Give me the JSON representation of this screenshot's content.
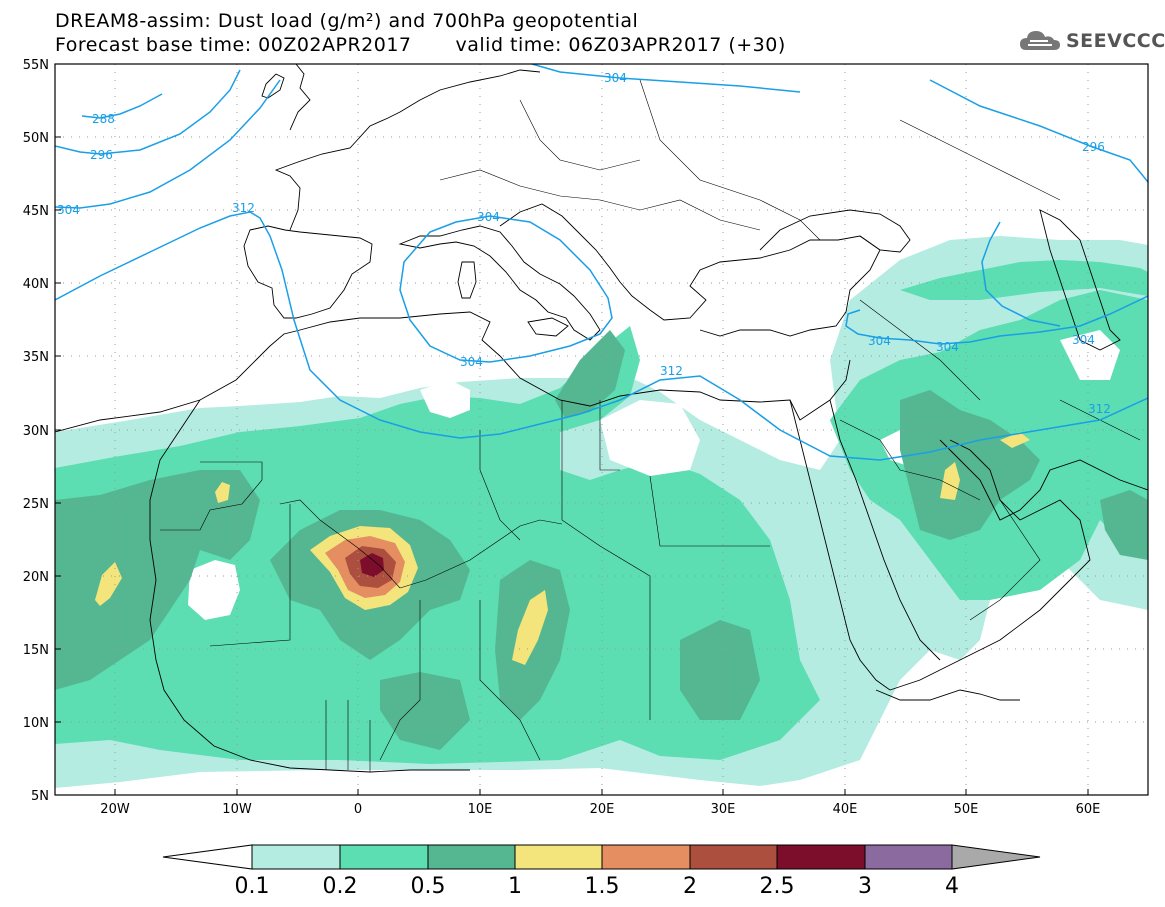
{
  "header": {
    "title_line1": "DREAM8-assim: Dust load (g/m²) and 700hPa geopotential",
    "base_time_label": "Forecast base time: 00Z02APR2017",
    "valid_time_label": "valid time: 06Z03APR2017 (+30)"
  },
  "logo": {
    "text": "SEEVCCC",
    "icon": "cloud-icon"
  },
  "map": {
    "lon_range": [
      -25,
      65
    ],
    "lat_range": [
      5,
      55
    ],
    "x_ticks": [
      "20W",
      "10W",
      "0",
      "10E",
      "20E",
      "30E",
      "40E",
      "50E",
      "60E"
    ],
    "y_ticks": [
      "55N",
      "50N",
      "45N",
      "40N",
      "35N",
      "30N",
      "25N",
      "20N",
      "15N",
      "10N",
      "5N"
    ],
    "contour_labels": [
      "288",
      "296",
      "304",
      "312",
      "304",
      "304",
      "312",
      "304",
      "304",
      "304",
      "296",
      "312",
      "304"
    ],
    "contour_color": "#1a9fe6",
    "land_lines": "#000000"
  },
  "colorbar": {
    "labels": [
      "0.1",
      "0.2",
      "0.5",
      "1",
      "1.5",
      "2",
      "2.5",
      "3",
      "4"
    ],
    "colors": [
      "#ffffff",
      "#b4ece2",
      "#5cddb2",
      "#55b791",
      "#f3e47c",
      "#e58e62",
      "#ad4f3e",
      "#7c0e2c",
      "#8b6aa0",
      "#a9a9a9"
    ]
  }
}
